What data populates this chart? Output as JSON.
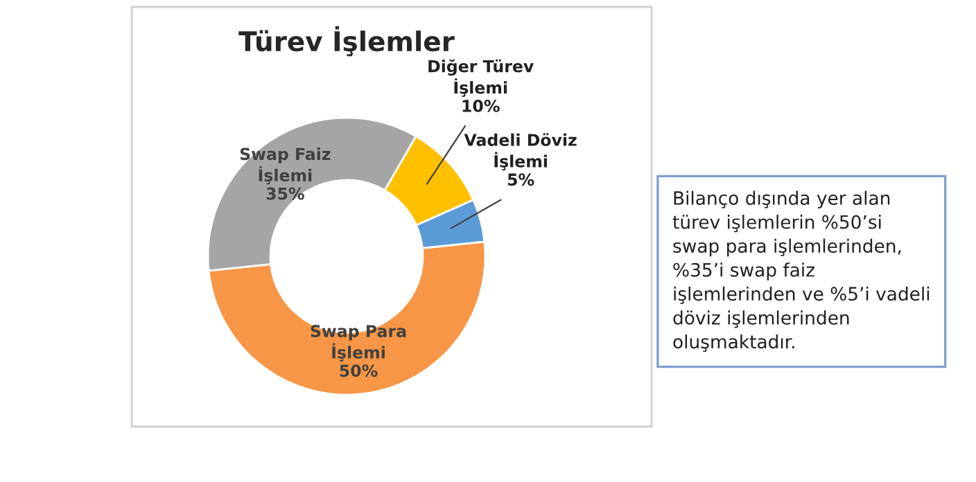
{
  "chart_data": {
    "type": "donut",
    "title": "Türev İşlemler",
    "categories": [
      "Diğer Türev\nİşlemi",
      "Vadeli Döviz\nİşlemi",
      "Swap Para\nİşlemi",
      "Swap Faiz\nİşlemi"
    ],
    "values": [
      10,
      5,
      50,
      35
    ],
    "value_labels": [
      "10%",
      "5%",
      "50%",
      "35%"
    ],
    "colors": [
      "#ffc000",
      "#5b9bd5",
      "#f79646",
      "#a5a5a5"
    ],
    "legend": false,
    "annotations": [
      "Bilanço dışında yer alan\ntürev işlemlerin %50’si\nswap para işlemlerinden,\n%35’i swap faiz\nişlemlerinden ve %5’i vadeli\ndöviz işlemlerinden\noluşmaktadır."
    ]
  }
}
